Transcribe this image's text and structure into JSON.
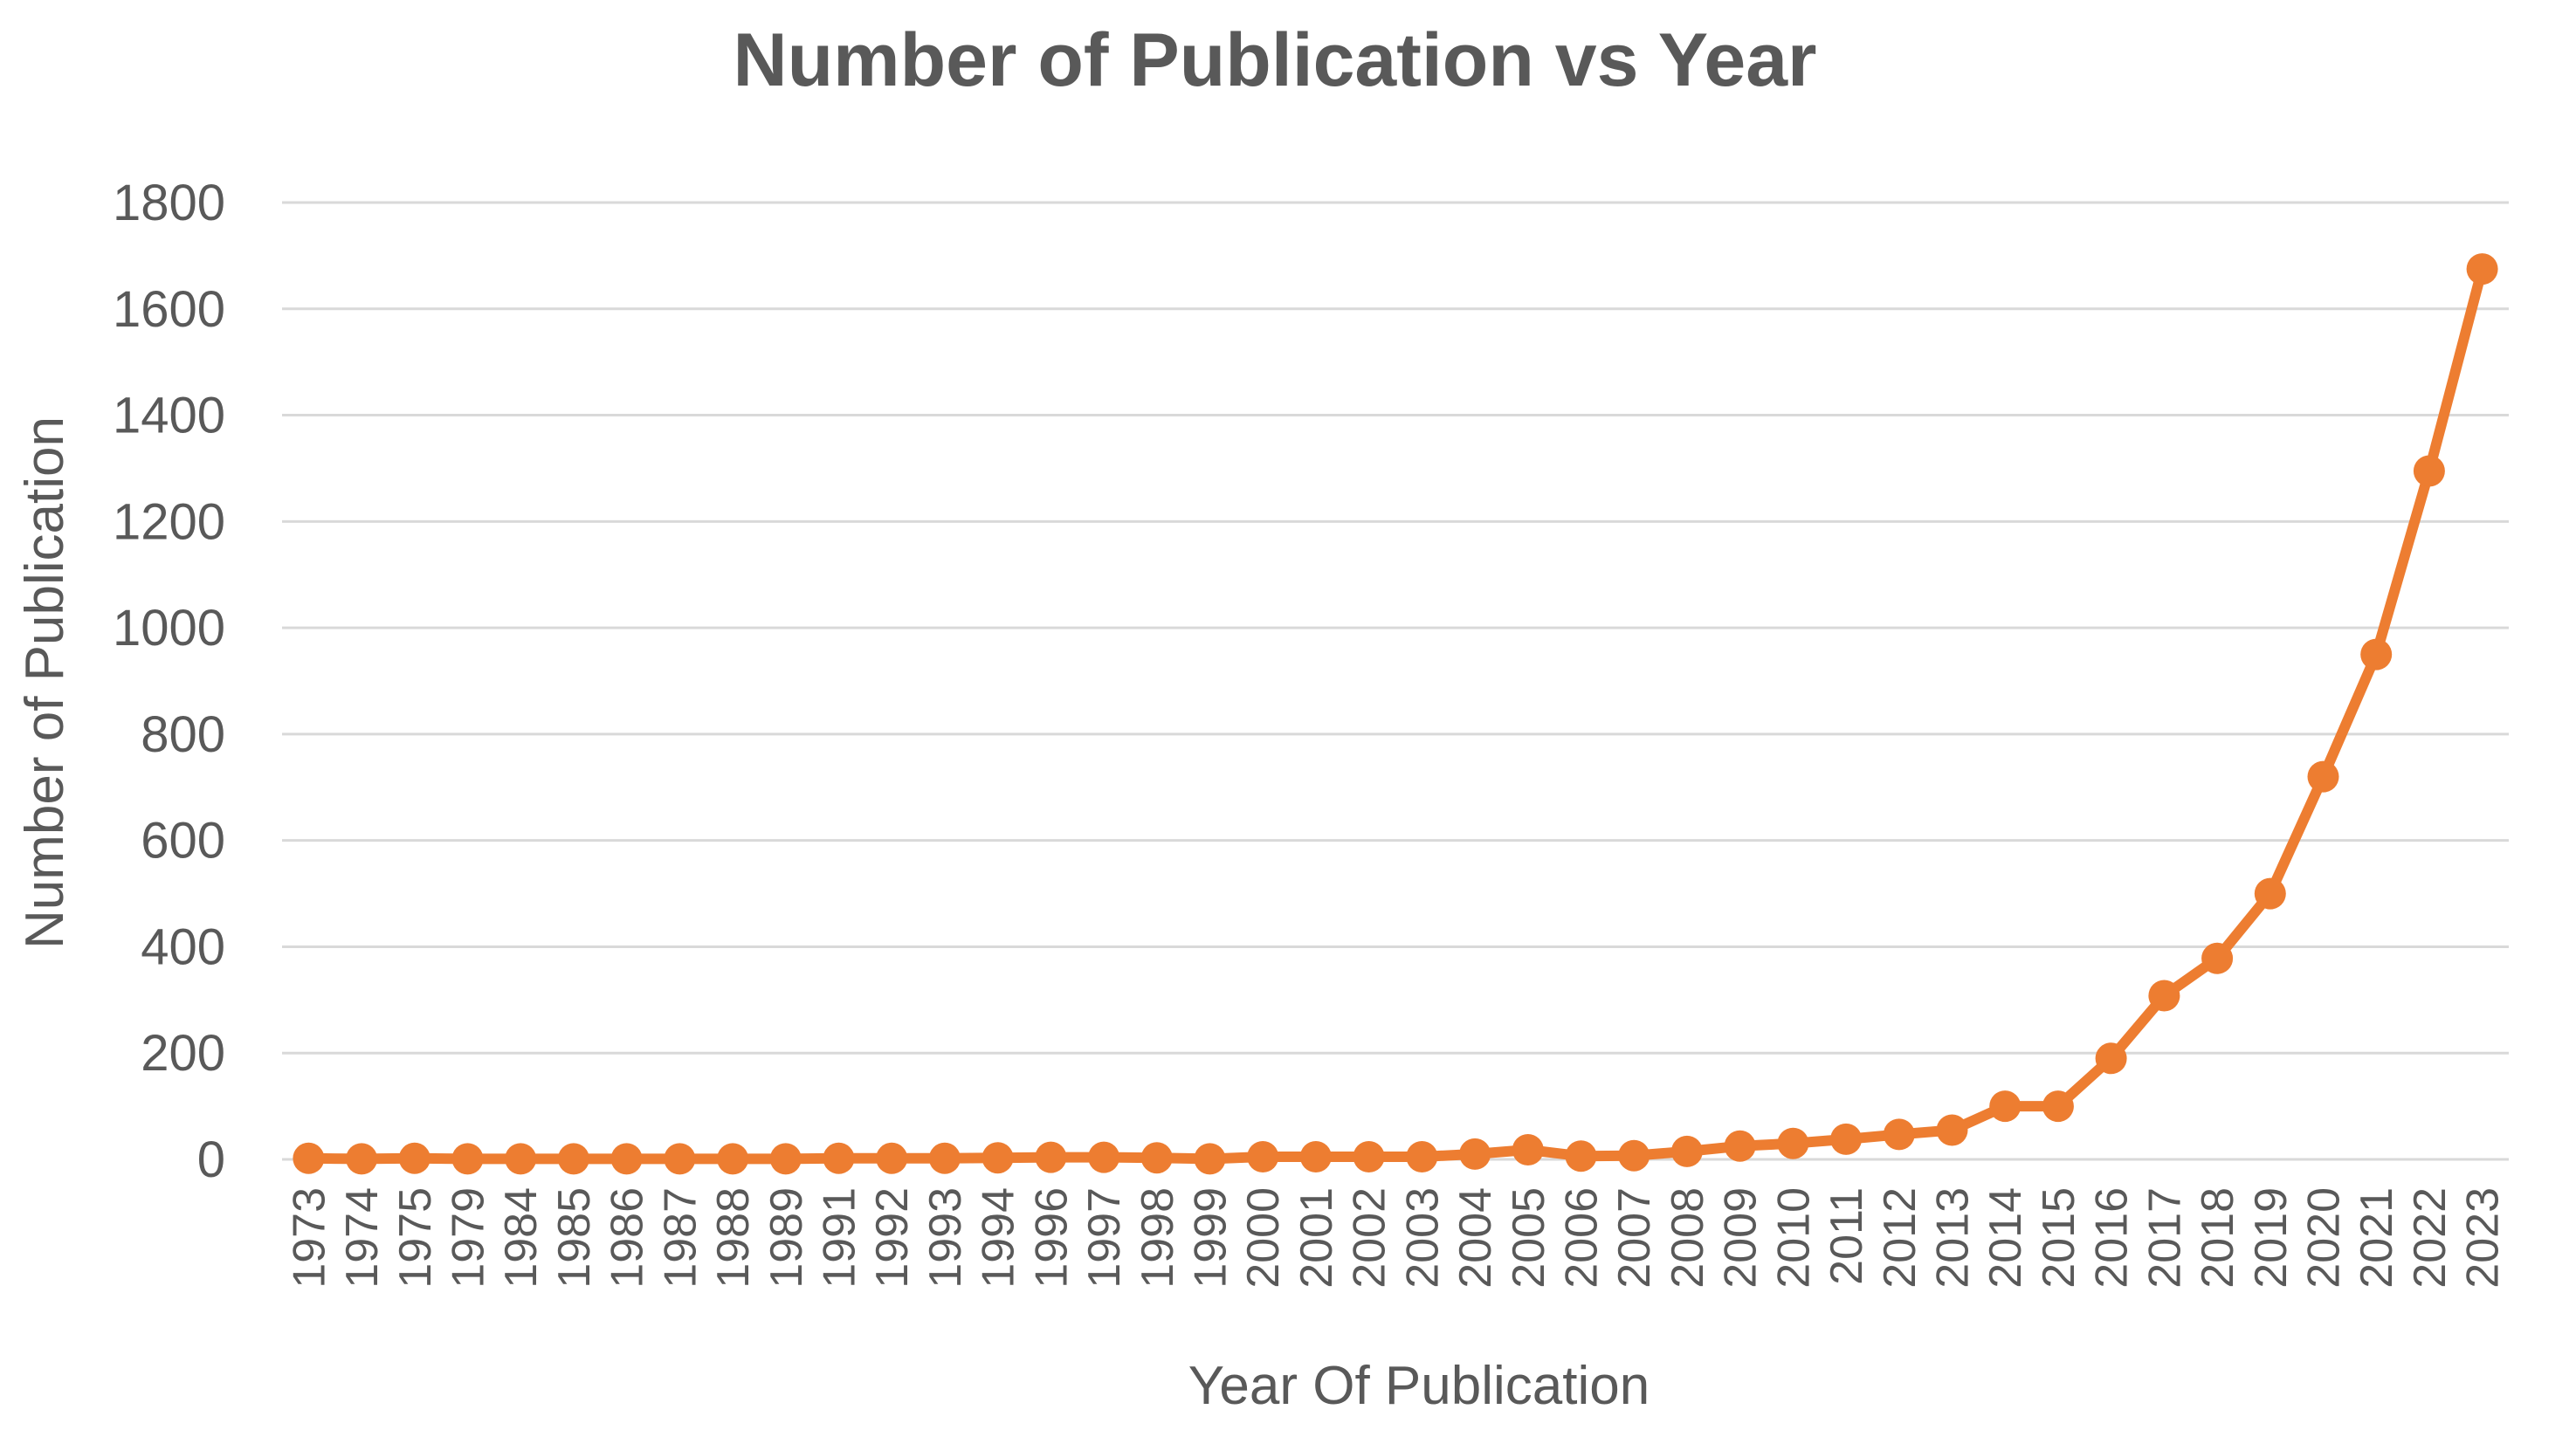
{
  "chart_data": {
    "type": "line",
    "title": "Number of Publication vs Year",
    "xlabel": "Year Of Publication",
    "ylabel": "Number of Publication",
    "ylim": [
      0,
      1800
    ],
    "yticks": [
      "0",
      "200",
      "400",
      "600",
      "800",
      "1000",
      "1200",
      "1400",
      "1600",
      "1800"
    ],
    "grid": true,
    "legend": "none",
    "color": "#ed7d31",
    "categories": [
      "1973",
      "1974",
      "1975",
      "1979",
      "1984",
      "1985",
      "1986",
      "1987",
      "1988",
      "1989",
      "1991",
      "1992",
      "1993",
      "1994",
      "1996",
      "1997",
      "1998",
      "1999",
      "2000",
      "2001",
      "2002",
      "2003",
      "2004",
      "2005",
      "2006",
      "2007",
      "2008",
      "2009",
      "2010",
      "2011",
      "2012",
      "2013",
      "2014",
      "2015",
      "2016",
      "2017",
      "2018",
      "2019",
      "2020",
      "2021",
      "2022",
      "2023"
    ],
    "series": [
      {
        "values": [
          2,
          1,
          2,
          1,
          1,
          1,
          1,
          1,
          1,
          1,
          2,
          2,
          2,
          3,
          4,
          4,
          3,
          1,
          5,
          5,
          5,
          5,
          10,
          18,
          6,
          7,
          15,
          25,
          30,
          38,
          47,
          55,
          100,
          100,
          190,
          308,
          378,
          500,
          720,
          950,
          1295,
          1675
        ]
      }
    ]
  }
}
